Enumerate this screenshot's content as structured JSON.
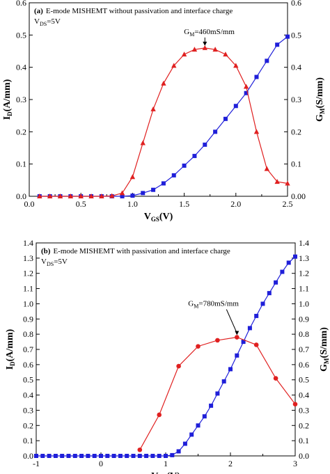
{
  "colors": {
    "id_series": "#1f1fd9",
    "gm_series": "#e02020",
    "axis": "#000000"
  },
  "chart_data": [
    {
      "type": "line",
      "panel": "(a)",
      "title": "E-mode MISHEMT without passivation and interface charge",
      "condition_main": "V",
      "condition_sub": "DS",
      "condition_rest": "=5V",
      "annotation_main": "G",
      "annotation_sub": "M",
      "annotation_rest": "=460mS/mm",
      "xlabel_main": "V",
      "xlabel_sub": "GS",
      "xlabel_rest": "(V)",
      "ylabel_left_main": "I",
      "ylabel_left_sub": "D",
      "ylabel_left_rest": "(A/mm)",
      "ylabel_right_main": "G",
      "ylabel_right_sub": "M",
      "ylabel_right_rest": "(S/mm)",
      "xlim": [
        0.0,
        2.5
      ],
      "ylim_left": [
        0.0,
        0.6
      ],
      "ylim_right": [
        0.0,
        0.6
      ],
      "xticks": [
        "0.0",
        "0.5",
        "1.0",
        "1.5",
        "2.0",
        "2.5"
      ],
      "yticks_left": [
        "0.0",
        "0.1",
        "0.2",
        "0.3",
        "0.4",
        "0.5",
        "0.6"
      ],
      "yticks_right": [
        "0.00",
        "0.1",
        "0.2",
        "0.3",
        "0.4",
        "0.5",
        "0.6"
      ],
      "annotation_point": [
        1.7,
        0.46
      ],
      "series": [
        {
          "axis": "left",
          "marker": "square",
          "x": [
            0.1,
            0.2,
            0.3,
            0.4,
            0.5,
            0.6,
            0.7,
            0.8,
            0.9,
            1.0,
            1.1,
            1.2,
            1.3,
            1.4,
            1.5,
            1.6,
            1.7,
            1.8,
            1.9,
            2.0,
            2.1,
            2.2,
            2.3,
            2.4,
            2.5
          ],
          "y": [
            0.0,
            0.0,
            0.0,
            0.0,
            0.0,
            0.0,
            0.0,
            0.0,
            0.0,
            0.002,
            0.01,
            0.02,
            0.04,
            0.065,
            0.095,
            0.125,
            0.16,
            0.2,
            0.24,
            0.28,
            0.32,
            0.37,
            0.42,
            0.47,
            0.495
          ]
        },
        {
          "axis": "right",
          "marker": "triangle",
          "x": [
            0.1,
            0.2,
            0.3,
            0.4,
            0.5,
            0.6,
            0.7,
            0.8,
            0.9,
            1.0,
            1.1,
            1.2,
            1.3,
            1.4,
            1.5,
            1.6,
            1.7,
            1.8,
            1.9,
            2.0,
            2.1,
            2.2,
            2.3,
            2.4,
            2.5
          ],
          "y": [
            0.0,
            0.0,
            0.0,
            0.0,
            0.0,
            0.0,
            0.0,
            0.001,
            0.01,
            0.06,
            0.165,
            0.27,
            0.35,
            0.405,
            0.44,
            0.455,
            0.46,
            0.455,
            0.44,
            0.405,
            0.34,
            0.2,
            0.085,
            0.045,
            0.04
          ]
        }
      ]
    },
    {
      "type": "line",
      "panel": "(b)",
      "title": "E-mode MISHEMT with passivation and interface charge",
      "condition_main": "V",
      "condition_sub": "DS",
      "condition_rest": "=5V",
      "annotation_main": "G",
      "annotation_sub": "M",
      "annotation_rest": "=780mS/mm",
      "xlabel_main": "V",
      "xlabel_sub": "GS",
      "xlabel_rest": "(V)",
      "ylabel_left_main": "I",
      "ylabel_left_sub": "D",
      "ylabel_left_rest": "(A/mm)",
      "ylabel_right_main": "G",
      "ylabel_right_sub": "M",
      "ylabel_right_rest": "(S/mm)",
      "xlim": [
        -1.0,
        3.0
      ],
      "ylim_left": [
        0.0,
        1.4
      ],
      "ylim_right": [
        0.0,
        1.4
      ],
      "xticks": [
        "-1",
        "0",
        "1",
        "2",
        "3"
      ],
      "yticks_left": [
        "0.0",
        "0.1",
        "0.2",
        "0.3",
        "0.4",
        "0.5",
        "0.6",
        "0.7",
        "0.8",
        "0.9",
        "1.0",
        "1.1",
        "1.2",
        "1.3",
        "1.4"
      ],
      "yticks_right": [
        "0.0",
        "0.1",
        "0.2",
        "0.3",
        "0.4",
        "0.5",
        "0.6",
        "0.7",
        "0.8",
        "0.9",
        "1.0",
        "1.1",
        "1.2",
        "1.3",
        "1.4"
      ],
      "annotation_point": [
        2.1,
        0.78
      ],
      "series": [
        {
          "axis": "left",
          "marker": "square",
          "x": [
            -1.0,
            -0.9,
            -0.8,
            -0.7,
            -0.6,
            -0.5,
            -0.4,
            -0.3,
            -0.2,
            -0.1,
            0.0,
            0.1,
            0.2,
            0.3,
            0.4,
            0.5,
            0.6,
            0.7,
            0.8,
            0.9,
            1.0,
            1.1,
            1.2,
            1.3,
            1.4,
            1.5,
            1.6,
            1.7,
            1.8,
            1.9,
            2.0,
            2.1,
            2.2,
            2.3,
            2.4,
            2.5,
            2.6,
            2.7,
            2.8,
            2.9,
            3.0
          ],
          "y": [
            0.0,
            0.0,
            0.0,
            0.0,
            0.0,
            0.0,
            0.0,
            0.0,
            0.0,
            0.0,
            0.0,
            0.0,
            0.0,
            0.0,
            0.0,
            0.0,
            0.0,
            0.0,
            0.0,
            0.0,
            0.0,
            0.005,
            0.03,
            0.08,
            0.14,
            0.2,
            0.26,
            0.33,
            0.41,
            0.49,
            0.57,
            0.66,
            0.75,
            0.84,
            0.92,
            1.0,
            1.07,
            1.14,
            1.21,
            1.27,
            1.31
          ]
        },
        {
          "axis": "right",
          "marker": "circle",
          "x": [
            0.6,
            0.9,
            1.2,
            1.5,
            1.8,
            2.1,
            2.4,
            2.7,
            3.0
          ],
          "y": [
            0.04,
            0.27,
            0.59,
            0.72,
            0.76,
            0.78,
            0.73,
            0.51,
            0.34
          ]
        }
      ]
    }
  ]
}
